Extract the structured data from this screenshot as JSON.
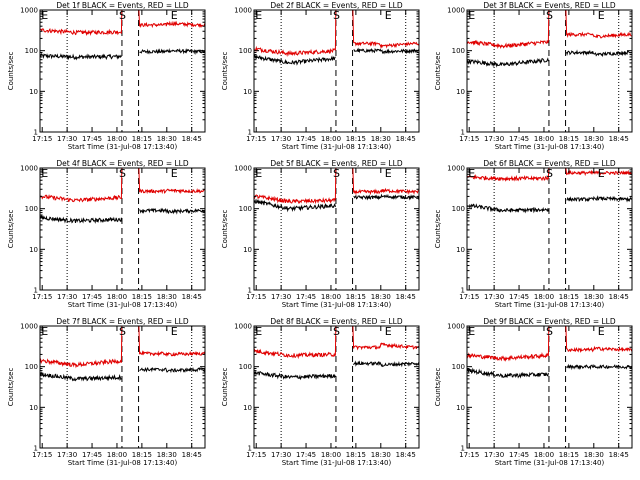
{
  "figure": {
    "x_tick_labels": [
      "17:15",
      "17:30",
      "17:45",
      "18:00",
      "18:15",
      "18:30",
      "18:45"
    ],
    "y_tick_labels": [
      "1",
      "10",
      "100",
      "1000"
    ],
    "colors": {
      "events": "#000000",
      "lld": "#e00000"
    },
    "yscale": "log"
  },
  "chart_data": [
    {
      "type": "line",
      "title": "Det 1f BLACK = Events, RED = LLD",
      "xlabel": "Start Time (31-Jul-08 17:13:40)",
      "ylabel": "Counts/sec",
      "xlim": [
        "17:13:40",
        "18:53:00"
      ],
      "ylim": [
        1,
        1000
      ],
      "yscale": "log",
      "segment_markers": [
        {
          "label": "E",
          "at": "17:15"
        },
        {
          "label": "S",
          "at": "18:03"
        },
        {
          "label": "E",
          "at": "18:33"
        }
      ],
      "vlines": {
        "dotted": [
          "17:30",
          "18:45"
        ],
        "dashed": [
          "18:03",
          "18:13"
        ]
      },
      "series": [
        {
          "color": "black",
          "x": [
            "17:15",
            "17:35",
            "18:03",
            "18:13",
            "18:30",
            "18:50"
          ],
          "values": [
            75,
            70,
            72,
            null,
            100,
            95
          ]
        },
        {
          "color": "red",
          "x": [
            "17:15",
            "17:35",
            "18:03",
            "18:13",
            "18:30",
            "18:50"
          ],
          "values": [
            320,
            280,
            290,
            null,
            470,
            430
          ]
        }
      ]
    },
    {
      "type": "line",
      "title": "Det 2f BLACK = Events, RED = LLD",
      "xlabel": "Start Time (31-Jul-08 17:13:40)",
      "ylabel": "Counts/sec",
      "xlim": [
        "17:13:40",
        "18:53:00"
      ],
      "ylim": [
        1,
        1000
      ],
      "yscale": "log",
      "segment_markers": [
        {
          "label": "E",
          "at": "17:15"
        },
        {
          "label": "S",
          "at": "18:03"
        },
        {
          "label": "E",
          "at": "18:33"
        }
      ],
      "vlines": {
        "dotted": [
          "17:30",
          "18:45"
        ],
        "dashed": [
          "18:03",
          "18:13"
        ]
      },
      "series": [
        {
          "color": "black",
          "x": [
            "17:15",
            "17:35",
            "18:03",
            "18:13",
            "18:30",
            "18:50"
          ],
          "values": [
            70,
            50,
            65,
            null,
            95,
            100
          ]
        },
        {
          "color": "red",
          "x": [
            "17:15",
            "17:35",
            "18:03",
            "18:13",
            "18:30",
            "18:50"
          ],
          "values": [
            110,
            85,
            100,
            null,
            130,
            150
          ]
        }
      ]
    },
    {
      "type": "line",
      "title": "Det 3f BLACK = Events, RED = LLD",
      "xlabel": "Start Time (31-Jul-08 17:13:40)",
      "ylabel": "Counts/sec",
      "xlim": [
        "17:13:40",
        "18:53:00"
      ],
      "ylim": [
        1,
        1000
      ],
      "yscale": "log",
      "segment_markers": [
        {
          "label": "E",
          "at": "17:15"
        },
        {
          "label": "S",
          "at": "18:03"
        },
        {
          "label": "E",
          "at": "18:33"
        }
      ],
      "vlines": {
        "dotted": [
          "17:30",
          "18:45"
        ],
        "dashed": [
          "18:03",
          "18:13"
        ]
      },
      "series": [
        {
          "color": "black",
          "x": [
            "17:15",
            "17:35",
            "18:03",
            "18:13",
            "18:30",
            "18:50"
          ],
          "values": [
            55,
            45,
            60,
            null,
            80,
            90
          ]
        },
        {
          "color": "red",
          "x": [
            "17:15",
            "17:35",
            "18:03",
            "18:13",
            "18:30",
            "18:50"
          ],
          "values": [
            165,
            130,
            165,
            null,
            220,
            250
          ]
        }
      ]
    },
    {
      "type": "line",
      "title": "Det 4f BLACK = Events, RED = LLD",
      "xlabel": "Start Time (31-Jul-08 17:13:40)",
      "ylabel": "Counts/sec",
      "xlim": [
        "17:13:40",
        "18:53:00"
      ],
      "ylim": [
        1,
        1000
      ],
      "yscale": "log",
      "segment_markers": [
        {
          "label": "E",
          "at": "17:15"
        },
        {
          "label": "S",
          "at": "18:03"
        },
        {
          "label": "E",
          "at": "18:33"
        }
      ],
      "vlines": {
        "dotted": [
          "17:30",
          "18:45"
        ],
        "dashed": [
          "18:03",
          "18:13"
        ]
      },
      "series": [
        {
          "color": "black",
          "x": [
            "17:15",
            "17:35",
            "18:03",
            "18:13",
            "18:30",
            "18:50"
          ],
          "values": [
            60,
            50,
            55,
            null,
            85,
            90
          ]
        },
        {
          "color": "red",
          "x": [
            "17:15",
            "17:35",
            "18:03",
            "18:13",
            "18:30",
            "18:50"
          ],
          "values": [
            200,
            160,
            190,
            null,
            280,
            270
          ]
        }
      ]
    },
    {
      "type": "line",
      "title": "Det 5f BLACK = Events, RED = LLD",
      "xlabel": "Start Time (31-Jul-08 17:13:40)",
      "ylabel": "Counts/sec",
      "xlim": [
        "17:13:40",
        "18:53:00"
      ],
      "ylim": [
        1,
        1000
      ],
      "yscale": "log",
      "segment_markers": [
        {
          "label": "E",
          "at": "17:15"
        },
        {
          "label": "S",
          "at": "18:03"
        },
        {
          "label": "E",
          "at": "18:33"
        }
      ],
      "vlines": {
        "dotted": [
          "17:30",
          "18:45"
        ],
        "dashed": [
          "18:03",
          "18:13"
        ]
      },
      "series": [
        {
          "color": "black",
          "x": [
            "17:15",
            "17:35",
            "18:03",
            "18:13",
            "18:30",
            "18:50"
          ],
          "values": [
            150,
            100,
            120,
            null,
            200,
            190
          ]
        },
        {
          "color": "red",
          "x": [
            "17:15",
            "17:35",
            "18:03",
            "18:13",
            "18:30",
            "18:50"
          ],
          "values": [
            200,
            150,
            160,
            null,
            280,
            260
          ]
        }
      ]
    },
    {
      "type": "line",
      "title": "Det 6f BLACK = Events, RED = LLD",
      "xlabel": "Start Time (31-Jul-08 17:13:40)",
      "ylabel": "Counts/sec",
      "xlim": [
        "17:13:40",
        "18:53:00"
      ],
      "ylim": [
        1,
        1000
      ],
      "yscale": "log",
      "segment_markers": [
        {
          "label": "E",
          "at": "17:15"
        },
        {
          "label": "S",
          "at": "18:03"
        },
        {
          "label": "E",
          "at": "18:33"
        }
      ],
      "vlines": {
        "dotted": [
          "17:30",
          "18:45"
        ],
        "dashed": [
          "18:03",
          "18:13"
        ]
      },
      "series": [
        {
          "color": "black",
          "x": [
            "17:15",
            "17:35",
            "18:03",
            "18:13",
            "18:30",
            "18:50"
          ],
          "values": [
            120,
            90,
            95,
            null,
            180,
            170
          ]
        },
        {
          "color": "red",
          "x": [
            "17:15",
            "17:35",
            "18:03",
            "18:13",
            "18:30",
            "18:50"
          ],
          "values": [
            600,
            550,
            560,
            null,
            760,
            760
          ]
        }
      ]
    },
    {
      "type": "line",
      "title": "Det 7f BLACK = Events, RED = LLD",
      "xlabel": "Start Time (31-Jul-08 17:13:40)",
      "ylabel": "Counts/sec",
      "xlim": [
        "17:13:40",
        "18:53:00"
      ],
      "ylim": [
        1,
        1000
      ],
      "yscale": "log",
      "segment_markers": [
        {
          "label": "E",
          "at": "17:15"
        },
        {
          "label": "S",
          "at": "18:03"
        },
        {
          "label": "E",
          "at": "18:33"
        }
      ],
      "vlines": {
        "dotted": [
          "17:30",
          "18:45"
        ],
        "dashed": [
          "18:03",
          "18:13"
        ]
      },
      "series": [
        {
          "color": "black",
          "x": [
            "17:15",
            "17:35",
            "18:03",
            "18:13",
            "18:30",
            "18:50"
          ],
          "values": [
            65,
            50,
            55,
            null,
            80,
            85
          ]
        },
        {
          "color": "red",
          "x": [
            "17:15",
            "17:35",
            "18:03",
            "18:13",
            "18:30",
            "18:50"
          ],
          "values": [
            140,
            110,
            140,
            null,
            200,
            210
          ]
        }
      ]
    },
    {
      "type": "line",
      "title": "Det 8f BLACK = Events, RED = LLD",
      "xlabel": "Start Time (31-Jul-08 17:13:40)",
      "ylabel": "Counts/sec",
      "xlim": [
        "17:13:40",
        "18:53:00"
      ],
      "ylim": [
        1,
        1000
      ],
      "yscale": "log",
      "segment_markers": [
        {
          "label": "E",
          "at": "17:15"
        },
        {
          "label": "S",
          "at": "18:03"
        },
        {
          "label": "E",
          "at": "18:33"
        }
      ],
      "vlines": {
        "dotted": [
          "17:30",
          "18:45"
        ],
        "dashed": [
          "18:03",
          "18:13"
        ]
      },
      "series": [
        {
          "color": "black",
          "x": [
            "17:15",
            "17:35",
            "18:03",
            "18:13",
            "18:30",
            "18:50"
          ],
          "values": [
            70,
            55,
            60,
            null,
            110,
            120
          ]
        },
        {
          "color": "red",
          "x": [
            "17:15",
            "17:35",
            "18:03",
            "18:13",
            "18:30",
            "18:50"
          ],
          "values": [
            240,
            190,
            200,
            null,
            350,
            300
          ]
        }
      ]
    },
    {
      "type": "line",
      "title": "Det 9f BLACK = Events, RED = LLD",
      "xlabel": "Start Time (31-Jul-08 17:13:40)",
      "ylabel": "Counts/sec",
      "xlim": [
        "17:13:40",
        "18:53:00"
      ],
      "ylim": [
        1,
        1000
      ],
      "yscale": "log",
      "segment_markers": [
        {
          "label": "E",
          "at": "17:15"
        },
        {
          "label": "S",
          "at": "18:03"
        },
        {
          "label": "E",
          "at": "18:33"
        }
      ],
      "vlines": {
        "dotted": [
          "17:30",
          "18:45"
        ],
        "dashed": [
          "18:03",
          "18:13"
        ]
      },
      "series": [
        {
          "color": "black",
          "x": [
            "17:15",
            "17:35",
            "18:03",
            "18:13",
            "18:30",
            "18:50"
          ],
          "values": [
            80,
            60,
            65,
            null,
            100,
            100
          ]
        },
        {
          "color": "red",
          "x": [
            "17:15",
            "17:35",
            "18:03",
            "18:13",
            "18:30",
            "18:50"
          ],
          "values": [
            190,
            160,
            190,
            null,
            280,
            260
          ]
        }
      ]
    }
  ]
}
